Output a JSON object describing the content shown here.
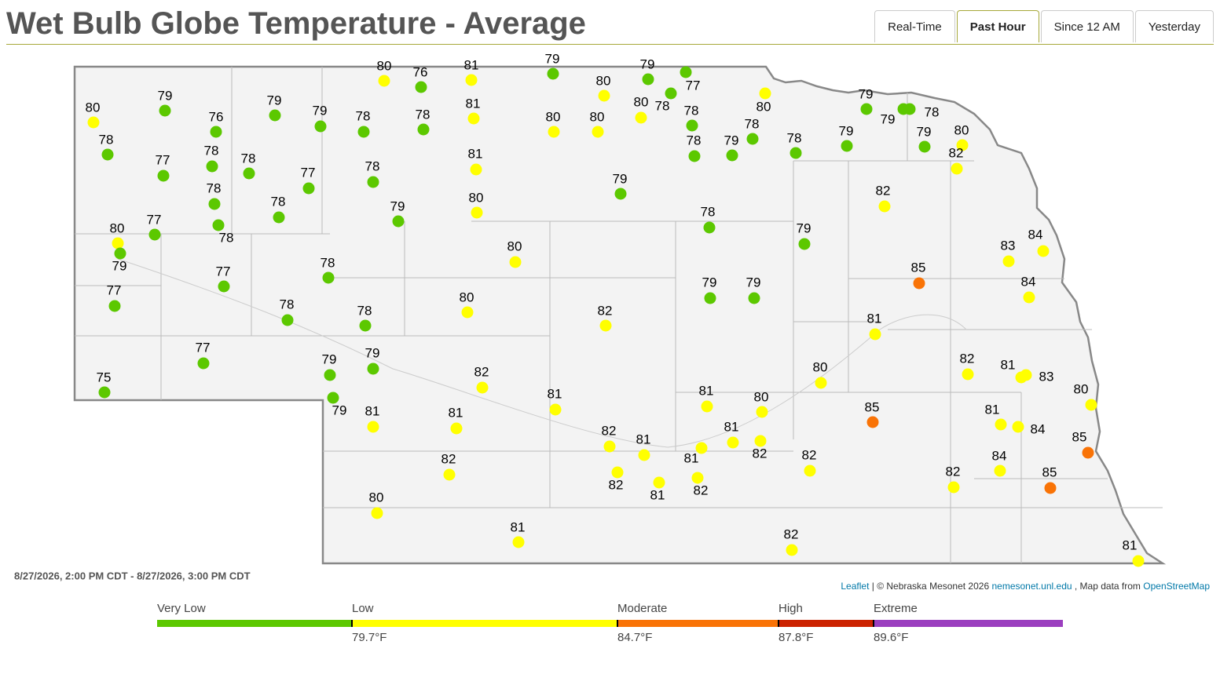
{
  "header": {
    "title": "Wet Bulb Globe Temperature - Average",
    "tabs": [
      "Real-Time",
      "Past Hour",
      "Since 12 AM",
      "Yesterday"
    ],
    "active_tab": 1
  },
  "map": {
    "time_range": "8/27/2026, 2:00 PM CDT - 8/27/2026, 3:00 PM CDT",
    "attribution": [
      "Leaflet",
      "| © Nebraska Mesonet 2026",
      "nemesonet.unl.edu",
      ", Map data from",
      "OpenStreetMap"
    ],
    "station_values": [
      80,
      79,
      78,
      76,
      79,
      79,
      78,
      80,
      76,
      81,
      78,
      81,
      79,
      80,
      79,
      77,
      78,
      80,
      80,
      78,
      80,
      80,
      78,
      79,
      78,
      78,
      79,
      79,
      79,
      78,
      79,
      80,
      82,
      82,
      81,
      80,
      77,
      78,
      78,
      77,
      78,
      78,
      78,
      78,
      77,
      80,
      79,
      79,
      79,
      78,
      79,
      80,
      78,
      77,
      77,
      78,
      78,
      80,
      82,
      79,
      79,
      85,
      83,
      84,
      84,
      81,
      77,
      75,
      79,
      79,
      79,
      82,
      80,
      82,
      81,
      83,
      80,
      81,
      81,
      81,
      81,
      80,
      85,
      81,
      84,
      85,
      82,
      81,
      81,
      81,
      82,
      82,
      82,
      81,
      82,
      82,
      84,
      85,
      82,
      80,
      81,
      82,
      81
    ]
  },
  "legend": {
    "categories": [
      {
        "name": "Very Low",
        "color": "#5cc800"
      },
      {
        "name": "Low",
        "color": "#ffff00",
        "threshold": {
          "value": 79.7,
          "label": "79.7°F"
        }
      },
      {
        "name": "Moderate",
        "color": "#f97306",
        "threshold": {
          "value": 84.7,
          "label": "84.7°F"
        }
      },
      {
        "name": "High",
        "color": "#cc2200",
        "threshold": {
          "value": 87.8,
          "label": "87.8°F"
        }
      },
      {
        "name": "Extreme",
        "color": "#9b3fbf",
        "threshold": {
          "value": 89.6,
          "label": "89.6°F"
        }
      }
    ]
  }
}
